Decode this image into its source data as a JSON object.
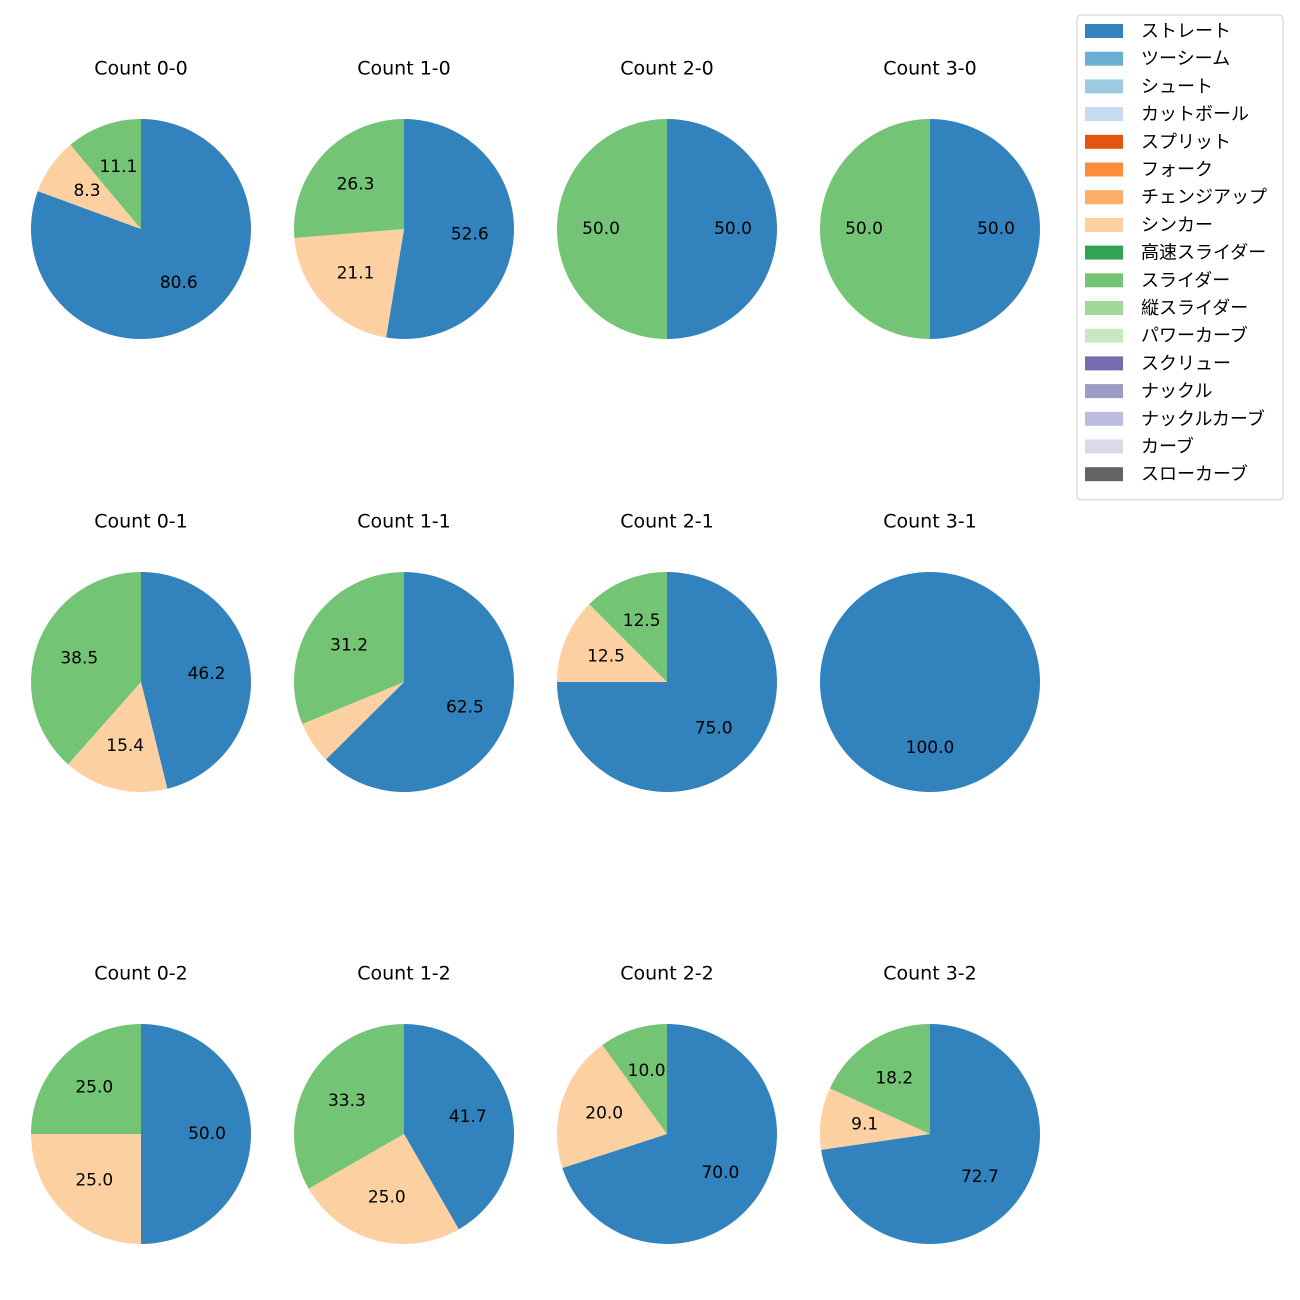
{
  "chart_data": {
    "type": "pie",
    "start_angle_deg": 90,
    "direction": "clockwise",
    "legend_location": "top-right",
    "legend": [
      {
        "name": "ストレート",
        "color": "#3182bd"
      },
      {
        "name": "ツーシーム",
        "color": "#6baed6"
      },
      {
        "name": "シュート",
        "color": "#9ecae1"
      },
      {
        "name": "カットボール",
        "color": "#c6dbef"
      },
      {
        "name": "スプリット",
        "color": "#e6550d"
      },
      {
        "name": "フォーク",
        "color": "#fd8d3c"
      },
      {
        "name": "チェンジアップ",
        "color": "#fdae6b"
      },
      {
        "name": "シンカー",
        "color": "#fdd0a2"
      },
      {
        "name": "高速スライダー",
        "color": "#31a354"
      },
      {
        "name": "スライダー",
        "color": "#74c476"
      },
      {
        "name": "縦スライダー",
        "color": "#a1d99b"
      },
      {
        "name": "パワーカーブ",
        "color": "#c7e9c0"
      },
      {
        "name": "スクリュー",
        "color": "#756bb1"
      },
      {
        "name": "ナックル",
        "color": "#9e9ac8"
      },
      {
        "name": "ナックルカーブ",
        "color": "#bcbddc"
      },
      {
        "name": "カーブ",
        "color": "#dadaeb"
      },
      {
        "name": "スローカーブ",
        "color": "#636363"
      }
    ],
    "pies": [
      {
        "title": "Count 0-0",
        "slices": [
          {
            "name": "ストレート",
            "value": 80.6,
            "label": "80.6"
          },
          {
            "name": "シンカー",
            "value": 8.3,
            "label": "8.3"
          },
          {
            "name": "スライダー",
            "value": 11.1,
            "label": "11.1"
          }
        ]
      },
      {
        "title": "Count 1-0",
        "slices": [
          {
            "name": "ストレート",
            "value": 52.6,
            "label": "52.6"
          },
          {
            "name": "シンカー",
            "value": 21.1,
            "label": "21.1"
          },
          {
            "name": "スライダー",
            "value": 26.3,
            "label": "26.3"
          }
        ]
      },
      {
        "title": "Count 2-0",
        "slices": [
          {
            "name": "ストレート",
            "value": 50.0,
            "label": "50.0"
          },
          {
            "name": "スライダー",
            "value": 50.0,
            "label": "50.0"
          }
        ]
      },
      {
        "title": "Count 3-0",
        "slices": [
          {
            "name": "ストレート",
            "value": 50.0,
            "label": "50.0"
          },
          {
            "name": "スライダー",
            "value": 50.0,
            "label": "50.0"
          }
        ]
      },
      {
        "title": "Count 0-1",
        "slices": [
          {
            "name": "ストレート",
            "value": 46.2,
            "label": "46.2"
          },
          {
            "name": "シンカー",
            "value": 15.4,
            "label": "15.4"
          },
          {
            "name": "スライダー",
            "value": 38.5,
            "label": "38.5"
          }
        ]
      },
      {
        "title": "Count 1-1",
        "slices": [
          {
            "name": "ストレート",
            "value": 62.5,
            "label": "62.5"
          },
          {
            "name": "シンカー",
            "value": 6.2,
            "label": ""
          },
          {
            "name": "スライダー",
            "value": 31.2,
            "label": "31.2"
          }
        ]
      },
      {
        "title": "Count 2-1",
        "slices": [
          {
            "name": "ストレート",
            "value": 75.0,
            "label": "75.0"
          },
          {
            "name": "シンカー",
            "value": 12.5,
            "label": "12.5"
          },
          {
            "name": "スライダー",
            "value": 12.5,
            "label": "12.5"
          }
        ]
      },
      {
        "title": "Count 3-1",
        "slices": [
          {
            "name": "ストレート",
            "value": 100.0,
            "label": "100.0"
          }
        ]
      },
      {
        "title": "Count 0-2",
        "slices": [
          {
            "name": "ストレート",
            "value": 50.0,
            "label": "50.0"
          },
          {
            "name": "シンカー",
            "value": 25.0,
            "label": "25.0"
          },
          {
            "name": "スライダー",
            "value": 25.0,
            "label": "25.0"
          }
        ]
      },
      {
        "title": "Count 1-2",
        "slices": [
          {
            "name": "ストレート",
            "value": 41.7,
            "label": "41.7"
          },
          {
            "name": "シンカー",
            "value": 25.0,
            "label": "25.0"
          },
          {
            "name": "スライダー",
            "value": 33.3,
            "label": "33.3"
          }
        ]
      },
      {
        "title": "Count 2-2",
        "slices": [
          {
            "name": "ストレート",
            "value": 70.0,
            "label": "70.0"
          },
          {
            "name": "シンカー",
            "value": 20.0,
            "label": "20.0"
          },
          {
            "name": "スライダー",
            "value": 10.0,
            "label": "10.0"
          }
        ]
      },
      {
        "title": "Count 3-2",
        "slices": [
          {
            "name": "ストレート",
            "value": 72.7,
            "label": "72.7"
          },
          {
            "name": "シンカー",
            "value": 9.1,
            "label": "9.1"
          },
          {
            "name": "スライダー",
            "value": 18.2,
            "label": "18.2"
          }
        ]
      }
    ]
  }
}
